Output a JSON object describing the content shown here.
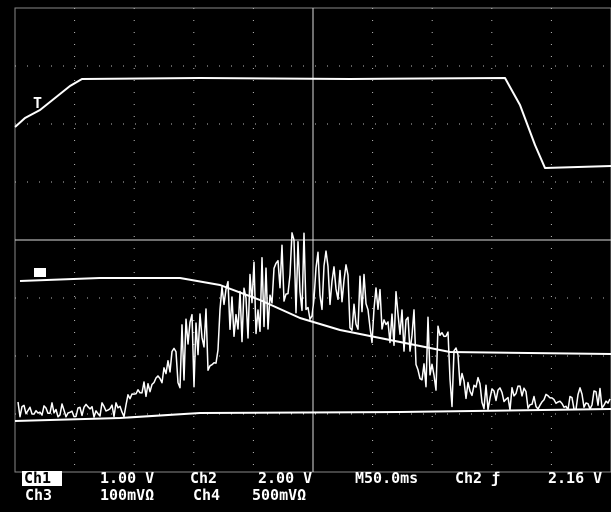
{
  "readout": {
    "row1": [
      "Ch1",
      "1.00 V",
      "Ch2",
      "2.00 V",
      "M50.0ms",
      "Ch2 ƒ",
      "2.16 V"
    ],
    "row2": [
      "Ch3",
      "100mVΩ",
      "Ch4",
      "500mVΩ"
    ]
  }
}
